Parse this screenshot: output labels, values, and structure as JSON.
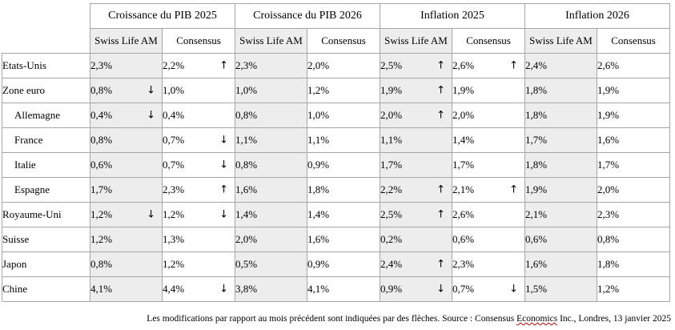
{
  "groups": [
    {
      "label": "Croissance du PIB 2025",
      "key": "pib2025"
    },
    {
      "label": "Croissance du PIB 2026",
      "key": "pib2026"
    },
    {
      "label": "Inflation 2025",
      "key": "inf2025"
    },
    {
      "label": "Inflation 2026",
      "key": "inf2026"
    }
  ],
  "subheaders": {
    "swiss": "Swiss Life AM",
    "consensus": "Consensus"
  },
  "arrow_glyphs": {
    "up": "↑",
    "down": "↓"
  },
  "rows": [
    {
      "country": "Etats-Unis",
      "indent": false,
      "cells": [
        {
          "v": "2,3%",
          "a": null
        },
        {
          "v": "2,2%",
          "a": "up"
        },
        {
          "v": "2,3%",
          "a": null
        },
        {
          "v": "2,0%",
          "a": null
        },
        {
          "v": "2,5%",
          "a": "up"
        },
        {
          "v": "2,6%",
          "a": "up"
        },
        {
          "v": "2,4%",
          "a": null
        },
        {
          "v": "2,6%",
          "a": null
        }
      ]
    },
    {
      "country": "Zone euro",
      "indent": false,
      "cells": [
        {
          "v": "0,8%",
          "a": "down"
        },
        {
          "v": "1,0%",
          "a": null
        },
        {
          "v": "1,0%",
          "a": null
        },
        {
          "v": "1,2%",
          "a": null
        },
        {
          "v": "1,9%",
          "a": "up"
        },
        {
          "v": "1,9%",
          "a": null
        },
        {
          "v": "1,8%",
          "a": null
        },
        {
          "v": "1,9%",
          "a": null
        }
      ]
    },
    {
      "country": "Allemagne",
      "indent": true,
      "cells": [
        {
          "v": "0,4%",
          "a": "down"
        },
        {
          "v": "0,4%",
          "a": null
        },
        {
          "v": "0,8%",
          "a": null
        },
        {
          "v": "1,0%",
          "a": null
        },
        {
          "v": "2,0%",
          "a": "up"
        },
        {
          "v": "2,0%",
          "a": null
        },
        {
          "v": "1,8%",
          "a": null
        },
        {
          "v": "1,9%",
          "a": null
        }
      ]
    },
    {
      "country": "France",
      "indent": true,
      "cells": [
        {
          "v": "0,8%",
          "a": null
        },
        {
          "v": "0,7%",
          "a": "down"
        },
        {
          "v": "1,1%",
          "a": null
        },
        {
          "v": "1,1%",
          "a": null
        },
        {
          "v": "1,1%",
          "a": null
        },
        {
          "v": "1,4%",
          "a": null
        },
        {
          "v": "1,7%",
          "a": null
        },
        {
          "v": "1,6%",
          "a": null
        }
      ]
    },
    {
      "country": "Italie",
      "indent": true,
      "cells": [
        {
          "v": "0,6%",
          "a": null
        },
        {
          "v": "0,7%",
          "a": "down"
        },
        {
          "v": "0,8%",
          "a": null
        },
        {
          "v": "0,9%",
          "a": null
        },
        {
          "v": "1,7%",
          "a": null
        },
        {
          "v": "1,7%",
          "a": null
        },
        {
          "v": "1,8%",
          "a": null
        },
        {
          "v": "1,7%",
          "a": null
        }
      ]
    },
    {
      "country": "Espagne",
      "indent": true,
      "cells": [
        {
          "v": "1,7%",
          "a": null
        },
        {
          "v": "2,3%",
          "a": "up"
        },
        {
          "v": "1,6%",
          "a": null
        },
        {
          "v": "1,8%",
          "a": null
        },
        {
          "v": "2,2%",
          "a": "up"
        },
        {
          "v": "2,1%",
          "a": "up"
        },
        {
          "v": "1,9%",
          "a": null
        },
        {
          "v": "2,0%",
          "a": null
        }
      ]
    },
    {
      "country": "Royaume-Uni",
      "indent": false,
      "cells": [
        {
          "v": "1,2%",
          "a": "down"
        },
        {
          "v": "1,2%",
          "a": "down"
        },
        {
          "v": "1,4%",
          "a": null
        },
        {
          "v": "1,4%",
          "a": null
        },
        {
          "v": "2,5%",
          "a": "up"
        },
        {
          "v": "2,6%",
          "a": null
        },
        {
          "v": "2,1%",
          "a": null
        },
        {
          "v": "2,3%",
          "a": null
        }
      ]
    },
    {
      "country": "Suisse",
      "indent": false,
      "cells": [
        {
          "v": "1,2%",
          "a": null
        },
        {
          "v": "1,3%",
          "a": null
        },
        {
          "v": "2,0%",
          "a": null
        },
        {
          "v": "1,6%",
          "a": null
        },
        {
          "v": "0,2%",
          "a": null
        },
        {
          "v": "0,6%",
          "a": null
        },
        {
          "v": "0,6%",
          "a": null
        },
        {
          "v": "0,8%",
          "a": null
        }
      ]
    },
    {
      "country": "Japon",
      "indent": false,
      "cells": [
        {
          "v": "0,8%",
          "a": null
        },
        {
          "v": "1,2%",
          "a": null
        },
        {
          "v": "0,5%",
          "a": null
        },
        {
          "v": "0,9%",
          "a": null
        },
        {
          "v": "2,4%",
          "a": "up"
        },
        {
          "v": "2,3%",
          "a": null
        },
        {
          "v": "1,6%",
          "a": null
        },
        {
          "v": "1,8%",
          "a": null
        }
      ]
    },
    {
      "country": "Chine",
      "indent": false,
      "cells": [
        {
          "v": "4,1%",
          "a": null
        },
        {
          "v": "4,4%",
          "a": "down"
        },
        {
          "v": "3,8%",
          "a": null
        },
        {
          "v": "4,1%",
          "a": null
        },
        {
          "v": "0,9%",
          "a": "down"
        },
        {
          "v": "0,7%",
          "a": "down"
        },
        {
          "v": "1,5%",
          "a": null
        },
        {
          "v": "1,2%",
          "a": null
        }
      ]
    }
  ],
  "footnote": {
    "before": "Les modifications par rapport au mois précédent sont indiquées par des flèches. Source : Consensus ",
    "underlined": "Economics",
    "after": " Inc., Londres, 13 janvier 2025"
  },
  "colors": {
    "swiss_fill": "#ededed",
    "border": "#a6a6a6"
  }
}
